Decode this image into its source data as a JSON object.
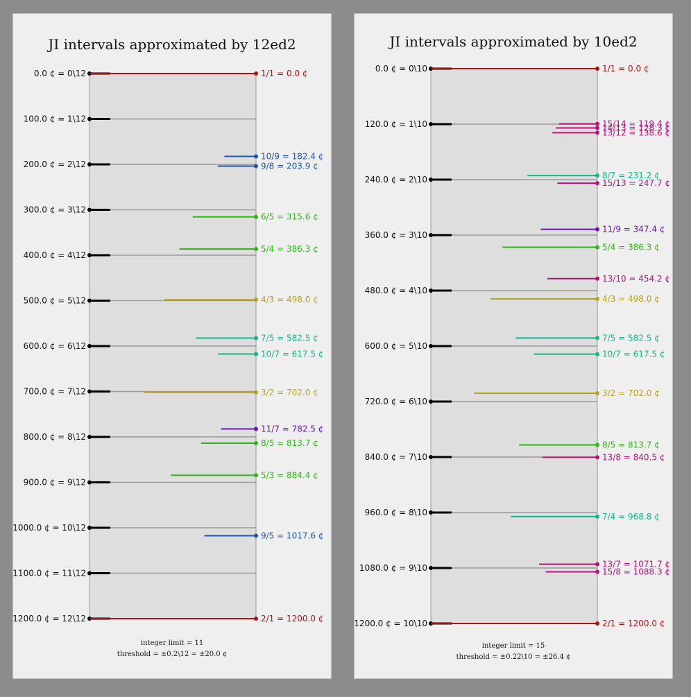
{
  "colors": {
    "background": "#8c8c8c",
    "panel": "#efefef",
    "plot_area": "#dedede",
    "gridline": "#9a9a9a",
    "tick": "#000000",
    "prime_2": "#b01212",
    "prime_3": "#b8a414",
    "prime_5": "#2fb814",
    "prime_7": "#10b88a",
    "prime_11": "#6a14b8",
    "prime_13": "#b8127a",
    "blue_9": "#1a56b0"
  },
  "chart_data": [
    {
      "type": "scatter",
      "title": "JI intervals approximated by 12ed2",
      "footnote_lines": [
        "integer limit = 11",
        "threshold = ±0.2\\12 = ±20.0 ¢"
      ],
      "ylim": [
        0,
        1200
      ],
      "edo": 12,
      "step_labels": [
        "0.0 ¢ = 0\\12",
        "100.0 ¢ = 1\\12",
        "200.0 ¢ = 2\\12",
        "300.0 ¢ = 3\\12",
        "400.0 ¢ = 4\\12",
        "500.0 ¢ = 5\\12",
        "600.0 ¢ = 6\\12",
        "700.0 ¢ = 7\\12",
        "800.0 ¢ = 8\\12",
        "900.0 ¢ = 9\\12",
        "1000.0 ¢ = 10\\12",
        "1100.0 ¢ = 11\\12",
        "1200.0 ¢ = 12\\12"
      ],
      "intervals": [
        {
          "label": "1/1 = 0.0 ¢",
          "cents": 0.0,
          "err": 1.0,
          "color": "#b01212"
        },
        {
          "label": "10/9 = 182.4 ¢",
          "cents": 182.4,
          "err": 0.19,
          "color": "#1a56b0"
        },
        {
          "label": "9/8 = 203.9 ¢",
          "cents": 203.9,
          "err": 0.23,
          "color": "#1a56b0"
        },
        {
          "label": "6/5 = 315.6 ¢",
          "cents": 315.6,
          "err": 0.38,
          "color": "#2fb814"
        },
        {
          "label": "5/4 = 386.3 ¢",
          "cents": 386.3,
          "err": 0.46,
          "color": "#2fb814"
        },
        {
          "label": "4/3 = 498.0 ¢",
          "cents": 498.0,
          "err": 0.55,
          "color": "#b8a414"
        },
        {
          "label": "7/5 = 582.5 ¢",
          "cents": 582.5,
          "err": 0.36,
          "color": "#10b88a"
        },
        {
          "label": "10/7 = 617.5 ¢",
          "cents": 617.5,
          "err": 0.23,
          "color": "#10b88a"
        },
        {
          "label": "3/2 = 702.0 ¢",
          "cents": 702.0,
          "err": 0.67,
          "color": "#b8a414"
        },
        {
          "label": "11/7 = 782.5 ¢",
          "cents": 782.5,
          "err": 0.21,
          "color": "#6a14b8"
        },
        {
          "label": "8/5 = 813.7 ¢",
          "cents": 813.7,
          "err": 0.33,
          "color": "#2fb814"
        },
        {
          "label": "5/3 = 884.4 ¢",
          "cents": 884.4,
          "err": 0.51,
          "color": "#2fb814"
        },
        {
          "label": "9/5 = 1017.6 ¢",
          "cents": 1017.6,
          "err": 0.31,
          "color": "#1a56b0"
        },
        {
          "label": "2/1 = 1200.0 ¢",
          "cents": 1200.0,
          "err": 1.0,
          "color": "#b01212"
        }
      ]
    },
    {
      "type": "scatter",
      "title": "JI intervals approximated by 10ed2",
      "footnote_lines": [
        "integer limit = 15",
        "threshold = ±0.22\\10 = ±26.4 ¢"
      ],
      "ylim": [
        0,
        1200
      ],
      "edo": 10,
      "step_labels": [
        "0.0 ¢ = 0\\10",
        "120.0 ¢ = 1\\10",
        "240.0 ¢ = 2\\10",
        "360.0 ¢ = 3\\10",
        "480.0 ¢ = 4\\10",
        "600.0 ¢ = 5\\10",
        "720.0 ¢ = 6\\10",
        "840.0 ¢ = 7\\10",
        "960.0 ¢ = 8\\10",
        "1080.0 ¢ = 9\\10",
        "1200.0 ¢ = 10\\10"
      ],
      "intervals": [
        {
          "label": "1/1 = 0.0 ¢",
          "cents": 0.0,
          "err": 1.0,
          "color": "#b01212"
        },
        {
          "label": "15/14 = 119.4 ¢",
          "cents": 119.4,
          "err": 0.23,
          "color": "#b8127a"
        },
        {
          "label": "14/13 = 128.3 ¢",
          "cents": 128.3,
          "err": 0.25,
          "color": "#b8127a"
        },
        {
          "label": "13/12 = 138.6 ¢",
          "cents": 138.6,
          "err": 0.27,
          "color": "#b8127a"
        },
        {
          "label": "8/7 = 231.2 ¢",
          "cents": 231.2,
          "err": 0.42,
          "color": "#10b88a"
        },
        {
          "label": "15/13 = 247.7 ¢",
          "cents": 247.7,
          "err": 0.24,
          "color": "#b8127a"
        },
        {
          "label": "11/9 = 347.4 ¢",
          "cents": 347.4,
          "err": 0.34,
          "color": "#6a14b8"
        },
        {
          "label": "5/4 = 386.3 ¢",
          "cents": 386.3,
          "err": 0.57,
          "color": "#2fb814"
        },
        {
          "label": "13/10 = 454.2 ¢",
          "cents": 454.2,
          "err": 0.3,
          "color": "#b8127a"
        },
        {
          "label": "4/3 = 498.0 ¢",
          "cents": 498.0,
          "err": 0.64,
          "color": "#b8a414"
        },
        {
          "label": "7/5 = 582.5 ¢",
          "cents": 582.5,
          "err": 0.49,
          "color": "#10b88a"
        },
        {
          "label": "10/7 = 617.5 ¢",
          "cents": 617.5,
          "err": 0.38,
          "color": "#10b88a"
        },
        {
          "label": "3/2 = 702.0 ¢",
          "cents": 702.0,
          "err": 0.74,
          "color": "#b8a414"
        },
        {
          "label": "8/5 = 813.7 ¢",
          "cents": 813.7,
          "err": 0.47,
          "color": "#2fb814"
        },
        {
          "label": "13/8 = 840.5 ¢",
          "cents": 840.5,
          "err": 0.33,
          "color": "#b8127a"
        },
        {
          "label": "7/4 = 968.8 ¢",
          "cents": 968.8,
          "err": 0.52,
          "color": "#10b88a"
        },
        {
          "label": "13/7 = 1071.7 ¢",
          "cents": 1071.7,
          "err": 0.35,
          "color": "#b8127a"
        },
        {
          "label": "15/8 = 1088.3 ¢",
          "cents": 1088.3,
          "err": 0.31,
          "color": "#b8127a"
        },
        {
          "label": "2/1 = 1200.0 ¢",
          "cents": 1200.0,
          "err": 1.0,
          "color": "#b01212"
        }
      ]
    }
  ]
}
